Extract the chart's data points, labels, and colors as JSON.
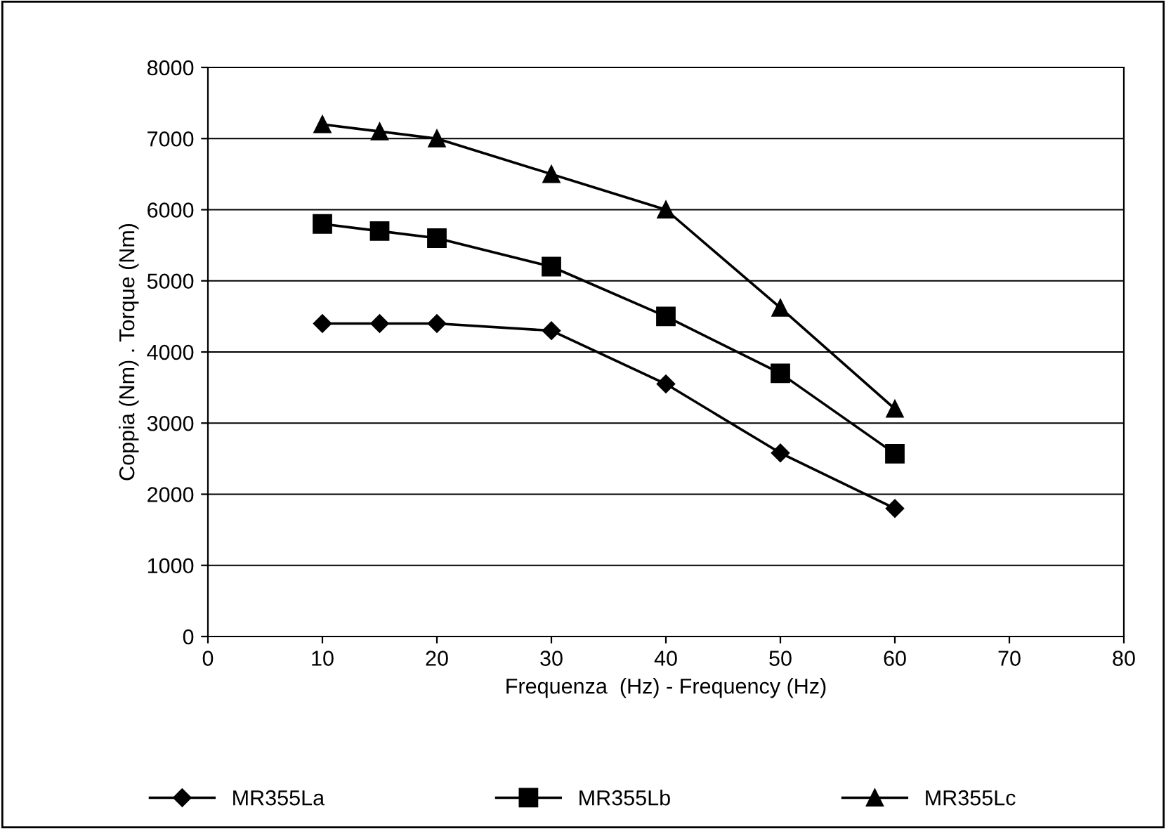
{
  "chart_data": {
    "type": "line",
    "xlabel": "Frequenza  (Hz) - Frequency (Hz)",
    "ylabel": "Coppia (Nm) . Torque (Nm)",
    "x": [
      10,
      15,
      20,
      30,
      40,
      50,
      60
    ],
    "series": [
      {
        "name": "MR355La",
        "color": "#000000",
        "marker": "diamond",
        "values": [
          4400,
          4400,
          4400,
          4300,
          3550,
          2580,
          1800
        ]
      },
      {
        "name": "MR355Lb",
        "color": "#000000",
        "marker": "square",
        "values": [
          5800,
          5700,
          5600,
          5200,
          4500,
          3700,
          2570
        ]
      },
      {
        "name": "MR355Lc",
        "color": "#000000",
        "marker": "triangle",
        "values": [
          7200,
          7100,
          7000,
          6500,
          6000,
          4620,
          3200
        ]
      }
    ],
    "xlim": [
      0,
      80
    ],
    "xticks": [
      0,
      10,
      20,
      30,
      40,
      50,
      60,
      70,
      80
    ],
    "ylim": [
      0,
      8000
    ],
    "yticks": [
      0,
      1000,
      2000,
      3000,
      4000,
      5000,
      6000,
      7000,
      8000
    ],
    "grid": "y",
    "legend": "bottom",
    "line_style": "solid"
  }
}
